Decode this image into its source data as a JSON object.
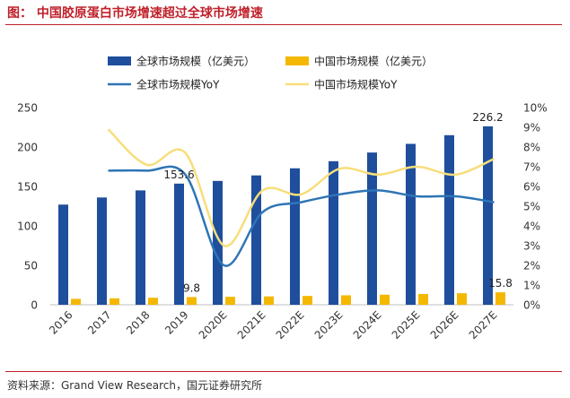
{
  "header": {
    "title": "图：  中国胶原蛋白市场增速超过全球市场增速"
  },
  "footer": {
    "source": "资料来源：Grand View Research，国元证券研究所"
  },
  "colors": {
    "global_bar": "#1f4e9c",
    "china_bar": "#f5b800",
    "global_yoy": "#2e75b6",
    "china_yoy": "#f7de7a",
    "title": "#c0202a"
  },
  "chart_data": {
    "type": "bar",
    "categories": [
      "2016",
      "2017",
      "2018",
      "2019",
      "2020E",
      "2021E",
      "2022E",
      "2023E",
      "2024E",
      "2025E",
      "2026E",
      "2027E"
    ],
    "series": [
      {
        "name": "全球市场规模（亿美元）",
        "kind": "bar",
        "axis": "left",
        "values": [
          127,
          136,
          145,
          153.6,
          157,
          164,
          173,
          182,
          193,
          204,
          215,
          226.2
        ]
      },
      {
        "name": "中国市场规模（亿美元）",
        "kind": "bar",
        "axis": "left",
        "values": [
          7.5,
          8.2,
          8.9,
          9.8,
          10.1,
          10.6,
          11.2,
          12.0,
          12.8,
          13.7,
          14.6,
          15.8
        ]
      },
      {
        "name": "全球市场规模YoY",
        "kind": "line",
        "axis": "right",
        "values": [
          null,
          6.8,
          6.8,
          6.6,
          2.0,
          4.7,
          5.2,
          5.6,
          5.8,
          5.5,
          5.5,
          5.2
        ]
      },
      {
        "name": "中国市场规模YoY",
        "kind": "line",
        "axis": "right",
        "values": [
          null,
          8.9,
          7.1,
          7.7,
          3.0,
          5.8,
          5.6,
          6.9,
          6.6,
          7.0,
          6.6,
          7.4
        ]
      }
    ],
    "data_labels": [
      {
        "series": 0,
        "index": 3,
        "text": "153.6"
      },
      {
        "series": 0,
        "index": 11,
        "text": "226.2"
      },
      {
        "series": 1,
        "index": 3,
        "text": "9.8"
      },
      {
        "series": 1,
        "index": 11,
        "text": "15.8"
      }
    ],
    "left_axis": {
      "ylim": [
        0,
        250
      ],
      "ticks": [
        0,
        50,
        100,
        150,
        200,
        250
      ]
    },
    "right_axis": {
      "ylim": [
        0,
        10
      ],
      "ticks": [
        "0%",
        "1%",
        "2%",
        "3%",
        "4%",
        "5%",
        "6%",
        "7%",
        "8%",
        "9%",
        "10%"
      ]
    },
    "legend": [
      {
        "label": "全球市场规模（亿美元）",
        "symbol": "bar",
        "color": "#1f4e9c"
      },
      {
        "label": "中国市场规模（亿美元）",
        "symbol": "bar",
        "color": "#f5b800"
      },
      {
        "label": "全球市场规模YoY",
        "symbol": "line",
        "color": "#2e75b6"
      },
      {
        "label": "中国市场规模YoY",
        "symbol": "line",
        "color": "#f7de7a"
      }
    ],
    "legend_position": "top",
    "grid": false
  }
}
